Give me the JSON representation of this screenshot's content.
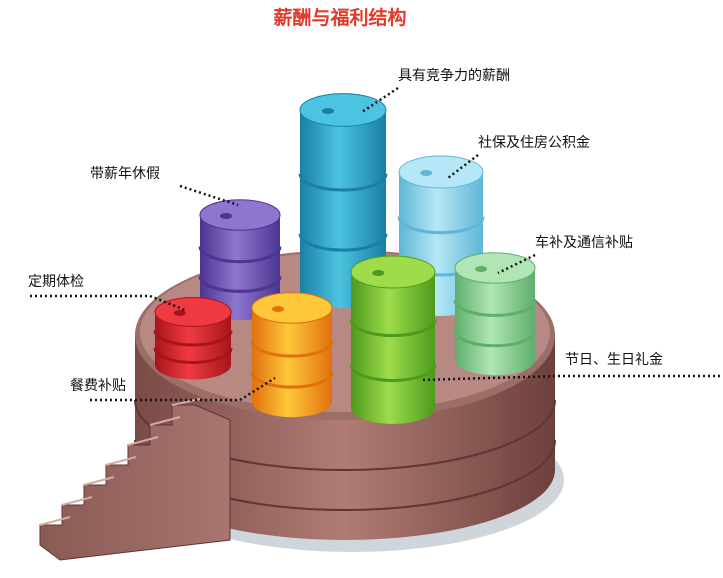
{
  "title": "薪酬与福利结构",
  "labels": [
    "具有竞争力的薪酬",
    "社保及住房公积金",
    "带薪年休假",
    "车补及通信补贴",
    "定期体检",
    "节日、生日礼金",
    "餐费补贴"
  ]
}
